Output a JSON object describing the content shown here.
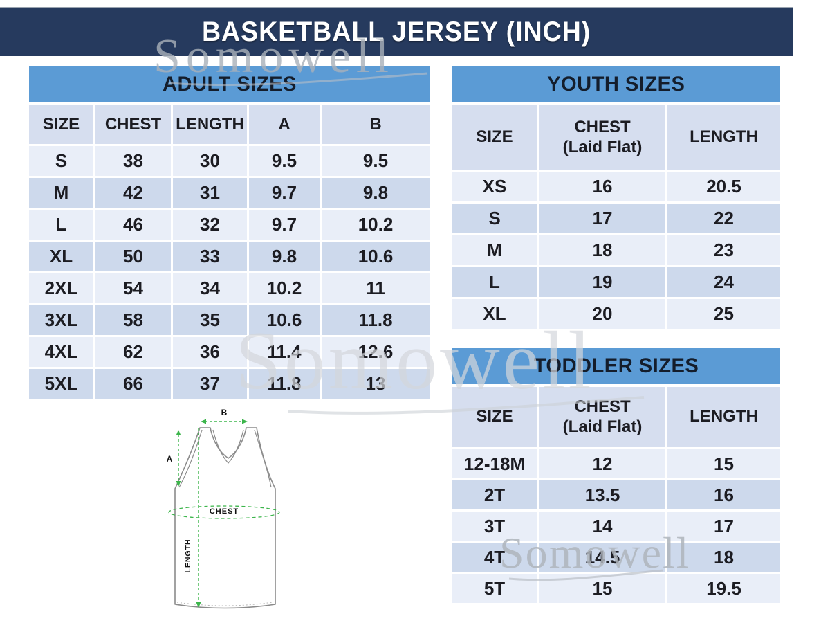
{
  "title": "BASKETBALL JERSEY (INCH)",
  "watermark": {
    "text": "Somowell"
  },
  "tables": {
    "adult": {
      "title": "ADULT SIZES",
      "columns": [
        "SIZE",
        "CHEST",
        "LENGTH",
        "A",
        "B"
      ],
      "rows": [
        [
          "S",
          "38",
          "30",
          "9.5",
          "9.5"
        ],
        [
          "M",
          "42",
          "31",
          "9.7",
          "9.8"
        ],
        [
          "L",
          "46",
          "32",
          "9.7",
          "10.2"
        ],
        [
          "XL",
          "50",
          "33",
          "9.8",
          "10.6"
        ],
        [
          "2XL",
          "54",
          "34",
          "10.2",
          "11"
        ],
        [
          "3XL",
          "58",
          "35",
          "10.6",
          "11.8"
        ],
        [
          "4XL",
          "62",
          "36",
          "11.4",
          "12.6"
        ],
        [
          "5XL",
          "66",
          "37",
          "11.8",
          "13"
        ]
      ]
    },
    "youth": {
      "title": "YOUTH SIZES",
      "columns": [
        "SIZE",
        "CHEST\n(Laid Flat)",
        "LENGTH"
      ],
      "rows": [
        [
          "XS",
          "16",
          "20.5"
        ],
        [
          "S",
          "17",
          "22"
        ],
        [
          "M",
          "18",
          "23"
        ],
        [
          "L",
          "19",
          "24"
        ],
        [
          "XL",
          "20",
          "25"
        ]
      ]
    },
    "toddler": {
      "title": "TODDLER SIZES",
      "columns": [
        "SIZE",
        "CHEST\n(Laid Flat)",
        "LENGTH"
      ],
      "rows": [
        [
          "12-18M",
          "12",
          "15"
        ],
        [
          "2T",
          "13.5",
          "16"
        ],
        [
          "3T",
          "14",
          "17"
        ],
        [
          "4T",
          "14.5",
          "18"
        ],
        [
          "5T",
          "15",
          "19.5"
        ]
      ]
    }
  },
  "diagram": {
    "label_a": "A",
    "label_b": "B",
    "label_chest": "CHEST",
    "label_length": "LENGTH"
  },
  "colors": {
    "navy": "#263a5e",
    "blue": "#5b9bd5",
    "colhead": "#d6deef",
    "rowlight": "#e9eef8",
    "rowdark": "#cdd9ec",
    "green": "#3cb54b",
    "watermark_gray": "#b9bec5",
    "title_text": "#ffffff",
    "table_text": "#1c1c22"
  }
}
